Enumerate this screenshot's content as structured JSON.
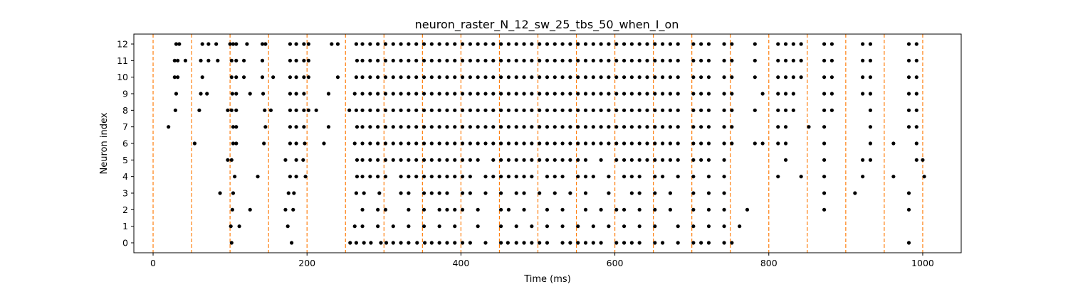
{
  "chart_data": {
    "type": "scatter",
    "title": "neuron_raster_N_12_sw_25_tbs_50_when_I_on",
    "xlabel": "Time (ms)",
    "ylabel": "Neuron index",
    "xlim": [
      -25,
      1050
    ],
    "ylim": [
      -0.6,
      12.6
    ],
    "xticks": [
      0,
      200,
      400,
      600,
      800,
      1000
    ],
    "yticks": [
      0,
      1,
      2,
      3,
      4,
      5,
      6,
      7,
      8,
      9,
      10,
      11,
      12
    ],
    "grid": false,
    "marker_color": "#000000",
    "vline_color": "#ff7f0e",
    "vline_style": "dashed",
    "vlines": [
      0,
      50,
      100,
      150,
      200,
      250,
      300,
      350,
      400,
      450,
      500,
      550,
      600,
      650,
      700,
      750,
      800,
      850,
      900,
      950,
      1000
    ],
    "series": [
      {
        "neuron": 0,
        "times": [
          102,
          180,
          256,
          264,
          274,
          283,
          296,
          303,
          312,
          322,
          332,
          343,
          353,
          362,
          372,
          382,
          392,
          402,
          412,
          432,
          452,
          461,
          472,
          482,
          492,
          502,
          512,
          532,
          542,
          552,
          562,
          572,
          582,
          602,
          612,
          622,
          632,
          652,
          662,
          682,
          702,
          712,
          722,
          742,
          752,
          982
        ]
      },
      {
        "neuron": 1,
        "times": [
          101,
          112,
          175,
          262,
          272,
          292,
          312,
          332,
          352,
          372,
          392,
          422,
          452,
          472,
          492,
          512,
          532,
          552,
          572,
          592,
          612,
          632,
          652,
          682,
          702,
          722,
          742,
          762
        ]
      },
      {
        "neuron": 2,
        "times": [
          103,
          126,
          172,
          182,
          272,
          292,
          302,
          332,
          352,
          372,
          382,
          392,
          402,
          422,
          452,
          462,
          482,
          512,
          532,
          562,
          582,
          602,
          612,
          632,
          652,
          672,
          702,
          722,
          742,
          772,
          872,
          982
        ]
      },
      {
        "neuron": 3,
        "times": [
          87,
          104,
          176,
          183,
          264,
          274,
          294,
          322,
          332,
          352,
          362,
          372,
          382,
          402,
          412,
          432,
          452,
          472,
          482,
          502,
          522,
          542,
          562,
          592,
          622,
          632,
          652,
          672,
          702,
          722,
          742,
          872,
          912,
          982
        ]
      },
      {
        "neuron": 4,
        "times": [
          106,
          136,
          178,
          186,
          198,
          265,
          272,
          282,
          292,
          302,
          322,
          332,
          342,
          352,
          362,
          372,
          382,
          392,
          402,
          412,
          432,
          442,
          452,
          462,
          472,
          482,
          492,
          512,
          522,
          532,
          552,
          562,
          572,
          592,
          612,
          622,
          632,
          652,
          662,
          682,
          702,
          722,
          742,
          812,
          842,
          872,
          922,
          962,
          1002
        ]
      },
      {
        "neuron": 5,
        "times": [
          97,
          102,
          172,
          186,
          195,
          265,
          272,
          282,
          292,
          302,
          312,
          322,
          332,
          342,
          352,
          362,
          372,
          382,
          392,
          402,
          412,
          422,
          442,
          452,
          462,
          472,
          482,
          492,
          502,
          512,
          522,
          532,
          542,
          552,
          562,
          582,
          602,
          612,
          622,
          632,
          642,
          652,
          662,
          672,
          682,
          702,
          712,
          722,
          742,
          822,
          872,
          922,
          932,
          992,
          1000
        ]
      },
      {
        "neuron": 6,
        "times": [
          54,
          104,
          108,
          144,
          178,
          186,
          197,
          222,
          262,
          272,
          282,
          292,
          302,
          312,
          322,
          332,
          342,
          352,
          362,
          372,
          382,
          392,
          402,
          412,
          422,
          432,
          442,
          452,
          462,
          472,
          482,
          492,
          502,
          512,
          522,
          532,
          542,
          552,
          562,
          572,
          582,
          592,
          602,
          612,
          622,
          632,
          642,
          652,
          662,
          672,
          682,
          702,
          712,
          722,
          742,
          752,
          782,
          792,
          812,
          822,
          872,
          932,
          962,
          992
        ]
      },
      {
        "neuron": 7,
        "times": [
          20,
          104,
          108,
          146,
          178,
          186,
          196,
          228,
          265,
          272,
          282,
          292,
          302,
          312,
          322,
          332,
          342,
          352,
          362,
          372,
          382,
          392,
          402,
          412,
          422,
          432,
          442,
          452,
          462,
          472,
          482,
          492,
          502,
          512,
          522,
          532,
          542,
          552,
          562,
          572,
          582,
          592,
          602,
          612,
          622,
          632,
          642,
          652,
          662,
          672,
          682,
          702,
          712,
          722,
          742,
          752,
          812,
          822,
          852,
          872,
          932,
          982,
          992
        ]
      },
      {
        "neuron": 8,
        "times": [
          29,
          60,
          97,
          102,
          108,
          145,
          153,
          178,
          186,
          196,
          202,
          212,
          255,
          264,
          272,
          282,
          292,
          302,
          312,
          322,
          332,
          342,
          352,
          362,
          372,
          382,
          392,
          402,
          412,
          422,
          432,
          442,
          452,
          462,
          472,
          482,
          492,
          502,
          512,
          522,
          532,
          542,
          552,
          562,
          572,
          582,
          592,
          602,
          612,
          622,
          632,
          642,
          652,
          662,
          672,
          682,
          702,
          712,
          722,
          742,
          752,
          782,
          812,
          822,
          832,
          872,
          882,
          932,
          982,
          992
        ]
      },
      {
        "neuron": 9,
        "times": [
          30,
          62,
          70,
          103,
          108,
          126,
          143,
          178,
          186,
          196,
          228,
          262,
          272,
          282,
          292,
          302,
          312,
          322,
          332,
          342,
          352,
          362,
          372,
          382,
          392,
          402,
          412,
          422,
          432,
          442,
          452,
          462,
          472,
          482,
          492,
          502,
          512,
          522,
          532,
          542,
          552,
          562,
          572,
          582,
          592,
          602,
          612,
          622,
          632,
          642,
          652,
          662,
          672,
          682,
          702,
          712,
          722,
          742,
          752,
          792,
          812,
          822,
          832,
          872,
          882,
          922,
          932,
          982,
          992
        ]
      },
      {
        "neuron": 10,
        "times": [
          28,
          32,
          64,
          102,
          108,
          118,
          142,
          156,
          178,
          186,
          196,
          202,
          240,
          264,
          272,
          282,
          292,
          302,
          312,
          322,
          332,
          342,
          352,
          362,
          372,
          382,
          392,
          402,
          412,
          422,
          432,
          442,
          452,
          462,
          472,
          482,
          492,
          502,
          512,
          522,
          532,
          542,
          552,
          562,
          572,
          582,
          592,
          602,
          612,
          622,
          632,
          642,
          652,
          662,
          672,
          682,
          702,
          712,
          722,
          742,
          752,
          782,
          812,
          822,
          832,
          842,
          872,
          882,
          922,
          932,
          982,
          992
        ]
      },
      {
        "neuron": 11,
        "times": [
          28,
          32,
          42,
          62,
          72,
          84,
          102,
          108,
          118,
          142,
          178,
          186,
          196,
          202,
          265,
          272,
          282,
          292,
          302,
          312,
          322,
          332,
          342,
          352,
          362,
          372,
          382,
          392,
          402,
          412,
          422,
          432,
          442,
          452,
          462,
          472,
          482,
          492,
          502,
          512,
          522,
          532,
          542,
          552,
          562,
          572,
          582,
          592,
          602,
          612,
          622,
          632,
          642,
          652,
          662,
          672,
          682,
          702,
          712,
          722,
          742,
          752,
          782,
          812,
          822,
          832,
          842,
          872,
          882,
          922,
          932,
          982,
          992
        ]
      },
      {
        "neuron": 12,
        "times": [
          30,
          34,
          64,
          72,
          82,
          100,
          104,
          108,
          122,
          142,
          146,
          178,
          186,
          196,
          202,
          232,
          240,
          264,
          272,
          282,
          292,
          302,
          312,
          322,
          332,
          342,
          352,
          362,
          372,
          382,
          392,
          402,
          412,
          422,
          432,
          442,
          452,
          462,
          472,
          482,
          492,
          502,
          512,
          522,
          532,
          542,
          552,
          562,
          572,
          582,
          592,
          602,
          612,
          622,
          632,
          642,
          652,
          662,
          672,
          682,
          702,
          712,
          722,
          742,
          752,
          782,
          812,
          822,
          832,
          842,
          872,
          882,
          922,
          932,
          982,
          992
        ]
      }
    ]
  }
}
